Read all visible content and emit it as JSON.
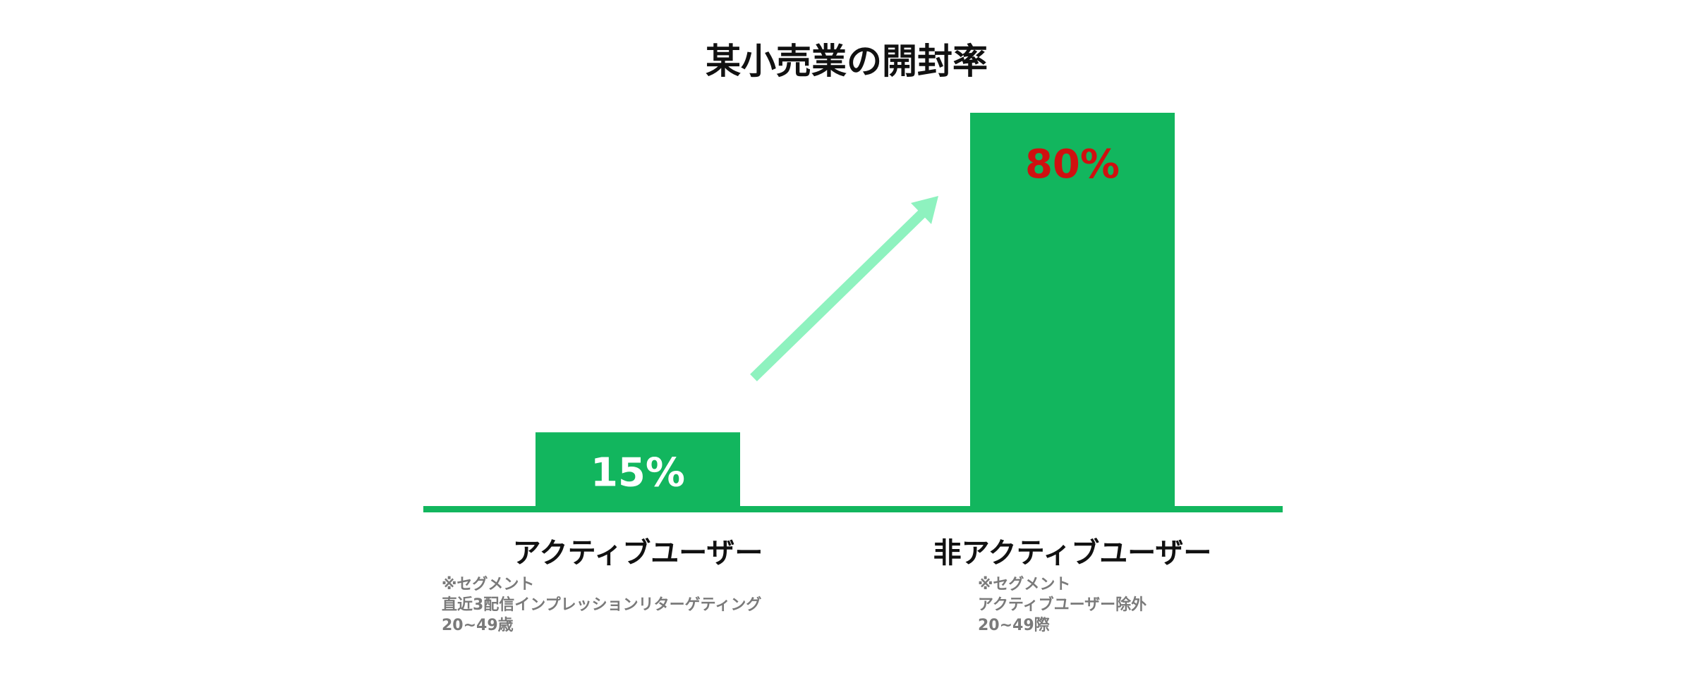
{
  "chart_data": {
    "type": "bar",
    "title": "某小売業の開封率",
    "categories": [
      "アクティブユーザー",
      "非アクティブユーザー"
    ],
    "values": [
      15,
      80
    ],
    "value_labels": [
      "15%",
      "80%"
    ],
    "ylim": [
      0,
      80
    ],
    "grid": false,
    "legend": "none",
    "colors": {
      "bar": "#12b65e",
      "baseline": "#12b65e",
      "arrow": "#8ef2bf",
      "value_label_low": "#ffffff",
      "value_label_high": "#d01010",
      "note": "#7a7a7a"
    },
    "notes": [
      [
        "※セグメント",
        "直近3配信インプレッションリターゲティング",
        "20~49歳"
      ],
      [
        "※セグメント",
        "アクティブユーザー除外",
        "20~49際"
      ]
    ],
    "annotation": "upward-arrow"
  }
}
